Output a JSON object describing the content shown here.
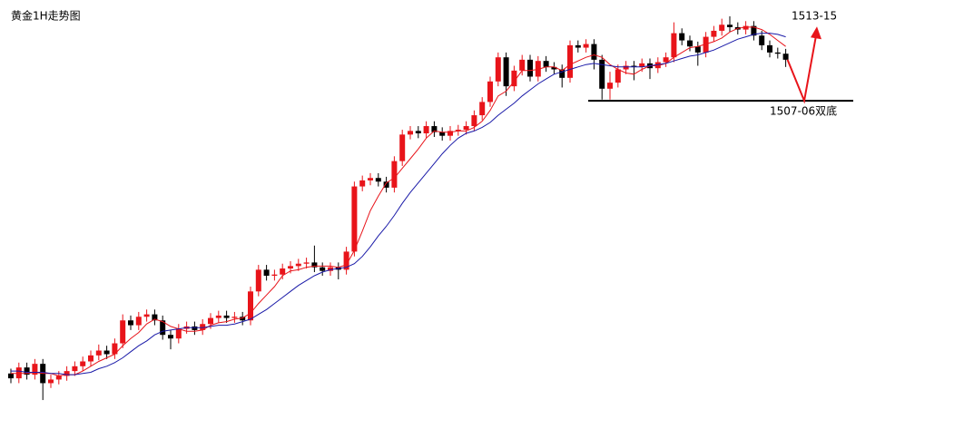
{
  "chart_data": {
    "type": "candlestick",
    "title": "黄金1H走势图",
    "ylim": [
      1479.8,
      1515.35
    ],
    "up_color": "#e8141a",
    "down_color": "#000000",
    "open": [
      1484.4,
      1484.0,
      1484.9,
      1484.3,
      1485.2,
      1483.6,
      1483.9,
      1484.2,
      1484.6,
      1485.0,
      1485.4,
      1485.9,
      1486.3,
      1486.0,
      1486.9,
      1488.8,
      1488.4,
      1489.1,
      1489.3,
      1488.8,
      1487.6,
      1487.3,
      1488.1,
      1488.3,
      1488.0,
      1488.5,
      1489.0,
      1489.2,
      1489.0,
      1489.1,
      1488.8,
      1491.2,
      1493.0,
      1492.5,
      1492.6,
      1493.1,
      1493.3,
      1493.5,
      1493.6,
      1493.2,
      1492.9,
      1493.2,
      1493.0,
      1494.5,
      1499.9,
      1500.4,
      1500.6,
      1500.3,
      1499.8,
      1502.0,
      1504.2,
      1504.5,
      1504.3,
      1504.9,
      1504.4,
      1504.1,
      1504.5,
      1504.6,
      1504.9,
      1505.8,
      1506.9,
      1508.6,
      1510.6,
      1508.2,
      1509.5,
      1510.4,
      1509.0,
      1510.3,
      1509.8,
      1509.6,
      1508.9,
      1511.6,
      1511.4,
      1511.7,
      1510.4,
      1508.0,
      1508.5,
      1509.6,
      1509.9,
      1509.8,
      1510.1,
      1509.7,
      1510.2,
      1510.6,
      1512.6,
      1512.0,
      1511.5,
      1511.0,
      1512.3,
      1512.8,
      1513.3,
      1513.1,
      1512.9,
      1513.2,
      1512.4,
      1511.6,
      1511.0,
      1510.9
    ],
    "high": [
      1484.8,
      1485.3,
      1485.3,
      1485.6,
      1485.6,
      1484.3,
      1484.6,
      1485.0,
      1485.4,
      1485.8,
      1486.3,
      1486.8,
      1486.7,
      1487.3,
      1489.3,
      1489.2,
      1489.5,
      1489.7,
      1489.7,
      1489.2,
      1488.0,
      1488.5,
      1488.7,
      1488.7,
      1488.9,
      1489.4,
      1489.6,
      1489.6,
      1489.5,
      1489.5,
      1491.6,
      1493.4,
      1493.4,
      1493.0,
      1493.5,
      1493.7,
      1493.9,
      1494.0,
      1495.0,
      1493.6,
      1493.6,
      1493.6,
      1494.9,
      1500.3,
      1500.8,
      1501.0,
      1501.0,
      1500.7,
      1502.4,
      1504.6,
      1504.9,
      1504.9,
      1505.3,
      1505.3,
      1504.8,
      1504.9,
      1505.0,
      1505.3,
      1506.2,
      1507.3,
      1509.0,
      1511.0,
      1511.0,
      1509.9,
      1510.8,
      1510.8,
      1510.7,
      1510.7,
      1510.2,
      1510.0,
      1512.0,
      1512.0,
      1512.1,
      1512.1,
      1510.8,
      1509.4,
      1510.0,
      1510.3,
      1510.3,
      1510.5,
      1510.5,
      1510.6,
      1511.0,
      1513.5,
      1513.0,
      1512.4,
      1511.9,
      1512.7,
      1513.2,
      1513.8,
      1514.0,
      1513.5,
      1513.6,
      1513.6,
      1512.8,
      1512.0,
      1511.4,
      1511.3
    ],
    "low": [
      1483.6,
      1483.6,
      1483.9,
      1483.9,
      1482.2,
      1483.2,
      1483.5,
      1483.8,
      1484.2,
      1484.6,
      1485.0,
      1485.5,
      1485.6,
      1485.6,
      1486.5,
      1488.0,
      1488.0,
      1488.7,
      1488.4,
      1487.2,
      1486.4,
      1486.9,
      1487.7,
      1487.6,
      1487.6,
      1488.1,
      1488.6,
      1488.6,
      1488.6,
      1488.4,
      1488.4,
      1490.8,
      1492.1,
      1492.1,
      1492.2,
      1492.7,
      1492.9,
      1493.1,
      1492.8,
      1492.5,
      1492.5,
      1492.2,
      1492.6,
      1494.1,
      1499.5,
      1500.0,
      1499.9,
      1499.4,
      1499.4,
      1501.6,
      1503.8,
      1503.9,
      1503.9,
      1504.0,
      1503.7,
      1503.7,
      1504.1,
      1504.2,
      1504.5,
      1505.4,
      1506.5,
      1508.2,
      1507.4,
      1507.8,
      1509.1,
      1508.6,
      1508.6,
      1509.4,
      1509.2,
      1508.1,
      1508.5,
      1511.0,
      1511.0,
      1509.6,
      1507.1,
      1507.1,
      1508.1,
      1509.2,
      1508.7,
      1509.4,
      1508.8,
      1509.3,
      1509.8,
      1510.2,
      1511.6,
      1511.1,
      1509.9,
      1510.6,
      1511.9,
      1512.4,
      1512.7,
      1512.5,
      1512.5,
      1512.0,
      1511.2,
      1510.6,
      1510.5,
      1509.8
    ],
    "close": [
      1484.0,
      1484.9,
      1484.3,
      1485.2,
      1483.6,
      1483.9,
      1484.2,
      1484.6,
      1485.0,
      1485.4,
      1485.9,
      1486.3,
      1486.0,
      1486.9,
      1488.8,
      1488.4,
      1489.1,
      1489.3,
      1488.8,
      1487.6,
      1487.3,
      1488.1,
      1488.3,
      1488.0,
      1488.5,
      1489.0,
      1489.2,
      1489.0,
      1489.1,
      1488.8,
      1491.2,
      1493.0,
      1492.5,
      1492.6,
      1493.1,
      1493.3,
      1493.5,
      1493.6,
      1493.2,
      1492.9,
      1493.2,
      1493.0,
      1494.5,
      1499.9,
      1500.4,
      1500.6,
      1500.3,
      1499.8,
      1502.0,
      1504.2,
      1504.5,
      1504.3,
      1504.9,
      1504.4,
      1504.1,
      1504.5,
      1504.6,
      1504.9,
      1505.8,
      1506.9,
      1508.6,
      1510.6,
      1508.2,
      1509.5,
      1510.4,
      1509.0,
      1510.3,
      1509.8,
      1509.6,
      1508.9,
      1511.6,
      1511.4,
      1511.7,
      1510.4,
      1508.0,
      1508.5,
      1509.6,
      1509.9,
      1509.8,
      1510.1,
      1509.7,
      1510.2,
      1510.6,
      1512.6,
      1512.0,
      1511.5,
      1511.0,
      1512.3,
      1512.8,
      1513.3,
      1513.1,
      1512.9,
      1513.2,
      1512.4,
      1511.6,
      1511.0,
      1510.9,
      1510.4
    ],
    "lines": [
      {
        "color": "#e8141a",
        "values": [
          1484.4,
          1484.4,
          1484.4,
          1484.5,
          1484.4,
          1484.4,
          1484.2,
          1484.3,
          1484.3,
          1484.6,
          1485.0,
          1485.4,
          1485.7,
          1486.0,
          1486.7,
          1487.3,
          1487.8,
          1488.5,
          1488.9,
          1488.7,
          1488.3,
          1488.1,
          1487.9,
          1487.9,
          1488.0,
          1488.4,
          1488.6,
          1488.7,
          1488.9,
          1489.0,
          1489.4,
          1490.2,
          1490.9,
          1491.6,
          1492.5,
          1492.9,
          1493.0,
          1493.2,
          1493.3,
          1493.3,
          1493.3,
          1493.2,
          1493.4,
          1494.6,
          1496.2,
          1497.9,
          1499.1,
          1500.2,
          1500.6,
          1501.4,
          1502.2,
          1503.0,
          1503.9,
          1504.5,
          1504.4,
          1504.4,
          1504.5,
          1504.5,
          1504.8,
          1505.3,
          1506.2,
          1507.4,
          1507.8,
          1508.6,
          1509.5,
          1509.5,
          1509.6,
          1509.8,
          1509.8,
          1509.5,
          1510.0,
          1510.3,
          1510.6,
          1510.8,
          1510.6,
          1510.0,
          1509.6,
          1509.3,
          1509.2,
          1509.6,
          1509.9,
          1509.9,
          1510.1,
          1510.6,
          1511.0,
          1511.4,
          1511.5,
          1511.7,
          1511.9,
          1512.2,
          1512.7,
          1513.0,
          1513.1,
          1513.1,
          1512.9,
          1512.5,
          1512.0,
          1511.5
        ]
      },
      {
        "color": "#1a1aa8",
        "values": [
          1484.6,
          1484.6,
          1484.5,
          1484.5,
          1484.5,
          1484.4,
          1484.4,
          1484.3,
          1484.3,
          1484.4,
          1484.5,
          1484.8,
          1485.0,
          1485.3,
          1485.7,
          1486.2,
          1486.7,
          1487.1,
          1487.6,
          1487.9,
          1488.0,
          1488.1,
          1488.2,
          1488.2,
          1488.2,
          1488.3,
          1488.4,
          1488.4,
          1488.5,
          1488.7,
          1488.9,
          1489.3,
          1489.7,
          1490.2,
          1490.7,
          1491.2,
          1491.7,
          1492.1,
          1492.5,
          1492.8,
          1493.0,
          1493.1,
          1493.2,
          1493.5,
          1494.1,
          1494.9,
          1495.8,
          1496.6,
          1497.5,
          1498.5,
          1499.4,
          1500.2,
          1501.0,
          1501.8,
          1502.6,
          1503.3,
          1503.9,
          1504.3,
          1504.5,
          1504.8,
          1505.2,
          1505.8,
          1506.3,
          1506.8,
          1507.4,
          1507.9,
          1508.4,
          1508.8,
          1509.2,
          1509.4,
          1509.6,
          1509.8,
          1510.0,
          1510.1,
          1510.0,
          1509.9,
          1509.8,
          1509.8,
          1509.8,
          1509.8,
          1509.9,
          1510.0,
          1510.1,
          1510.3,
          1510.5,
          1510.7,
          1510.8,
          1511.0,
          1511.2,
          1511.5,
          1511.8,
          1512.1,
          1512.3,
          1512.5,
          1512.6,
          1512.6,
          1512.5,
          1512.3
        ]
      }
    ],
    "annotations": [
      {
        "text": "1513-15",
        "value": 1513
      },
      {
        "text": "1507-06双底",
        "value": 1507
      }
    ],
    "annotation_color": "#e8141a"
  }
}
